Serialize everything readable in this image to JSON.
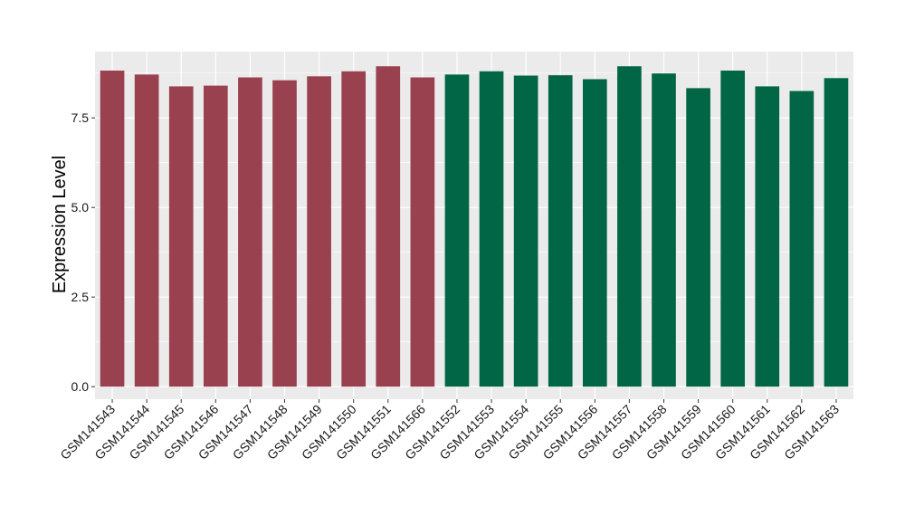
{
  "chart_data": {
    "type": "bar",
    "title": "",
    "xlabel": "",
    "ylabel": "Expression Level",
    "ylim": [
      -0.35,
      9.35
    ],
    "yticks": [
      0.0,
      2.5,
      5.0,
      7.5
    ],
    "ytick_labels": [
      "0.0",
      "2.5",
      "5.0",
      "7.5"
    ],
    "grid": true,
    "legend": "none",
    "panel_background": "#ebebeb",
    "gridline_color": "#ffffff",
    "categories": [
      "GSM141543",
      "GSM141544",
      "GSM141545",
      "GSM141546",
      "GSM141547",
      "GSM141548",
      "GSM141549",
      "GSM141550",
      "GSM141551",
      "GSM141566",
      "GSM141552",
      "GSM141553",
      "GSM141554",
      "GSM141555",
      "GSM141556",
      "GSM141557",
      "GSM141558",
      "GSM141559",
      "GSM141560",
      "GSM141561",
      "GSM141562",
      "GSM141563"
    ],
    "values": [
      8.82,
      8.71,
      8.38,
      8.4,
      8.63,
      8.55,
      8.66,
      8.8,
      8.94,
      8.63,
      8.71,
      8.8,
      8.68,
      8.69,
      8.58,
      8.94,
      8.74,
      8.33,
      8.82,
      8.38,
      8.25,
      8.61
    ],
    "bar_colors": [
      "#99414f",
      "#99414f",
      "#99414f",
      "#99414f",
      "#99414f",
      "#99414f",
      "#99414f",
      "#99414f",
      "#99414f",
      "#99414f",
      "#006645",
      "#006645",
      "#006645",
      "#006645",
      "#006645",
      "#006645",
      "#006645",
      "#006645",
      "#006645",
      "#006645",
      "#006645",
      "#006645"
    ]
  }
}
